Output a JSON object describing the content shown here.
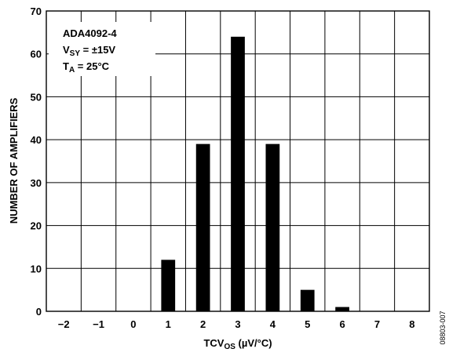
{
  "chart_data": {
    "type": "bar",
    "categories": [
      "−2",
      "−1",
      "0",
      "1",
      "2",
      "3",
      "4",
      "5",
      "6",
      "7",
      "8"
    ],
    "values": [
      0,
      0,
      0,
      12,
      39,
      64,
      39,
      5,
      1,
      0,
      0
    ],
    "y_ticks": [
      "0",
      "10",
      "20",
      "30",
      "40",
      "50",
      "60",
      "70"
    ],
    "ylim": [
      0,
      70
    ],
    "ylabel": "NUMBER OF AMPLIFIERS",
    "xlabel": {
      "main": "TCV",
      "sub": "OS",
      "unit": " (µV/°C)"
    },
    "grid": true,
    "annotations": {
      "line1": "ADA4092-4",
      "line2": {
        "main": "V",
        "sub": "SY",
        "rest": " = ±15V"
      },
      "line3": {
        "main": "T",
        "sub": "A",
        "rest": " = 25°C"
      }
    },
    "bar_color": "#000000"
  },
  "figure_id": "08803-007"
}
